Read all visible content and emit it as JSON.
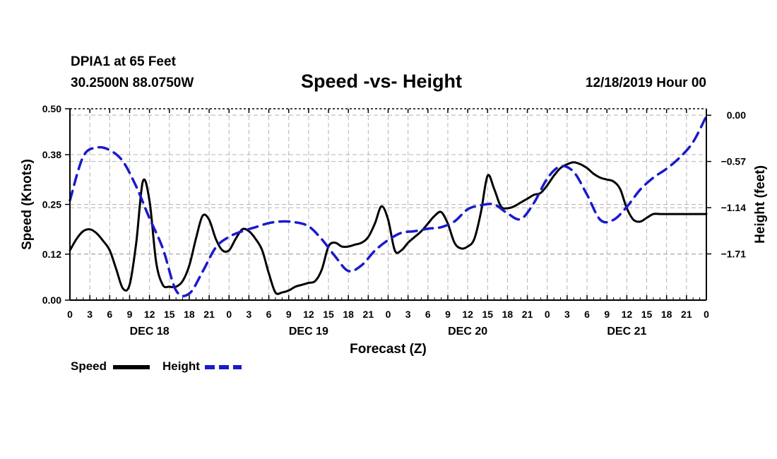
{
  "header": {
    "station": "DPIA1 at 65 Feet",
    "coords": "30.2500N 88.0750W",
    "title": "Speed -vs- Height",
    "date": "12/18/2019 Hour 00"
  },
  "legend": {
    "speed_label": "Speed",
    "height_label": "Height"
  },
  "colors": {
    "speed": "#000000",
    "height": "#1a1acc",
    "grid": "#b4b4b4"
  },
  "chart_data": {
    "type": "line",
    "title": "Speed -vs- Height",
    "xlabel": "Forecast (Z)",
    "ylabel": "Speed (Knots)",
    "y2label": "Height (feet)",
    "xlim": [
      0,
      96
    ],
    "ylim": [
      0,
      0.5
    ],
    "y2lim": [
      -2.28,
      0.08
    ],
    "grid": true,
    "x_ticks": [
      0,
      3,
      6,
      9,
      12,
      15,
      18,
      21,
      24,
      27,
      30,
      33,
      36,
      39,
      42,
      45,
      48,
      51,
      54,
      57,
      60,
      63,
      66,
      69,
      72,
      75,
      78,
      81,
      84,
      87,
      90,
      93,
      96
    ],
    "x_tick_labels": [
      "0",
      "3",
      "6",
      "9",
      "12",
      "15",
      "18",
      "21",
      "0",
      "3",
      "6",
      "9",
      "12",
      "15",
      "18",
      "21",
      "0",
      "3",
      "6",
      "9",
      "12",
      "15",
      "18",
      "21",
      "0",
      "3",
      "6",
      "9",
      "12",
      "15",
      "18",
      "21",
      "0"
    ],
    "day_labels": [
      {
        "x": 12,
        "label": "DEC 18"
      },
      {
        "x": 36,
        "label": "DEC 19"
      },
      {
        "x": 60,
        "label": "DEC 20"
      },
      {
        "x": 84,
        "label": "DEC 21"
      }
    ],
    "y_ticks": [
      0.0,
      0.12,
      0.25,
      0.38,
      0.5
    ],
    "y_tick_labels": [
      "0.00",
      "0.12",
      "0.25",
      "0.38",
      "0.50"
    ],
    "y2_ticks": [
      0.0,
      -0.57,
      -1.14,
      -1.71
    ],
    "y2_tick_labels": [
      "0.00",
      "-0.57",
      "-1.14",
      "-1.71"
    ],
    "series": [
      {
        "name": "Speed",
        "axis": "left",
        "style": "solid",
        "x": [
          0,
          1,
          2,
          3,
          4,
          5,
          6,
          7,
          8,
          9,
          10,
          11,
          12,
          13,
          14,
          15,
          16,
          17,
          18,
          19,
          20,
          21,
          22,
          23,
          24,
          25,
          26,
          27,
          28,
          29,
          30,
          31,
          32,
          33,
          34,
          35,
          36,
          37,
          38,
          39,
          40,
          41,
          42,
          43,
          44,
          45,
          46,
          47,
          48,
          49,
          50,
          51,
          52,
          53,
          54,
          55,
          56,
          57,
          58,
          59,
          60,
          61,
          62,
          63,
          64,
          65,
          66,
          67,
          68,
          69,
          70,
          71,
          72,
          73,
          74,
          75,
          76,
          77,
          78,
          79,
          80,
          81,
          82,
          83,
          84,
          85,
          86,
          87,
          88,
          89,
          90,
          91,
          92,
          93,
          94,
          95,
          96
        ],
        "values": [
          0.13,
          0.16,
          0.18,
          0.185,
          0.175,
          0.155,
          0.13,
          0.08,
          0.03,
          0.04,
          0.15,
          0.31,
          0.26,
          0.1,
          0.04,
          0.035,
          0.035,
          0.05,
          0.09,
          0.16,
          0.22,
          0.21,
          0.16,
          0.13,
          0.13,
          0.16,
          0.185,
          0.18,
          0.16,
          0.13,
          0.07,
          0.02,
          0.02,
          0.025,
          0.035,
          0.04,
          0.045,
          0.05,
          0.08,
          0.14,
          0.15,
          0.14,
          0.14,
          0.145,
          0.15,
          0.165,
          0.2,
          0.245,
          0.21,
          0.13,
          0.13,
          0.15,
          0.165,
          0.18,
          0.2,
          0.22,
          0.23,
          0.2,
          0.15,
          0.135,
          0.14,
          0.16,
          0.23,
          0.325,
          0.29,
          0.245,
          0.24,
          0.245,
          0.255,
          0.265,
          0.275,
          0.28,
          0.3,
          0.325,
          0.345,
          0.355,
          0.36,
          0.355,
          0.345,
          0.33,
          0.32,
          0.315,
          0.31,
          0.29,
          0.24,
          0.21,
          0.205,
          0.215,
          0.225,
          0.225,
          0.225,
          0.225,
          0.225,
          0.225,
          0.225,
          0.225,
          0.225
        ]
      },
      {
        "name": "Height",
        "axis": "right",
        "style": "dashed",
        "x": [
          0,
          2,
          4,
          6,
          8,
          10,
          12,
          14,
          16,
          18,
          20,
          22,
          24,
          26,
          28,
          30,
          32,
          34,
          36,
          38,
          40,
          42,
          44,
          46,
          48,
          50,
          52,
          54,
          56,
          58,
          60,
          62,
          64,
          66,
          68,
          70,
          72,
          74,
          76,
          78,
          80,
          82,
          84,
          86,
          88,
          90,
          92,
          94,
          96
        ],
        "values": [
          -1.05,
          -0.51,
          -0.4,
          -0.43,
          -0.57,
          -0.88,
          -1.27,
          -1.64,
          -2.16,
          -2.2,
          -1.93,
          -1.63,
          -1.5,
          -1.43,
          -1.38,
          -1.33,
          -1.31,
          -1.32,
          -1.37,
          -1.53,
          -1.74,
          -1.92,
          -1.85,
          -1.67,
          -1.54,
          -1.45,
          -1.43,
          -1.4,
          -1.38,
          -1.31,
          -1.16,
          -1.11,
          -1.1,
          -1.21,
          -1.28,
          -1.08,
          -0.78,
          -0.63,
          -0.7,
          -0.98,
          -1.29,
          -1.29,
          -1.13,
          -0.92,
          -0.77,
          -0.66,
          -0.52,
          -0.33,
          -0.01
        ]
      }
    ]
  }
}
